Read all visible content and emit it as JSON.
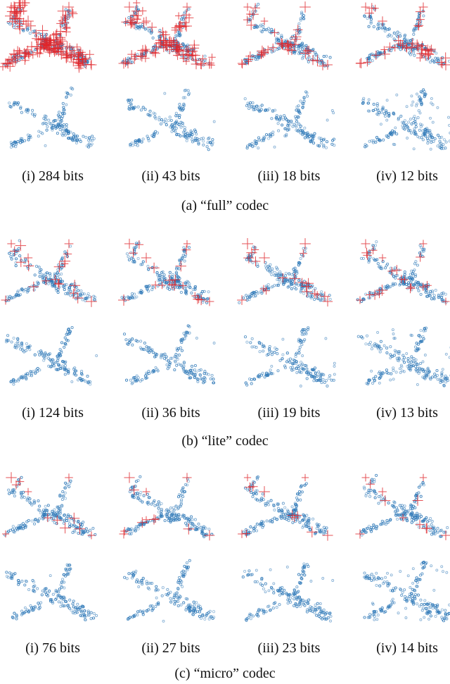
{
  "figure": {
    "sections": [
      {
        "caption": "(a) “full” codec",
        "labels": [
          "(i) 284 bits",
          "(ii) 43 bits",
          "(iii) 18 bits",
          "(iv) 12 bits"
        ],
        "keypoint_density": [
          "very-high",
          "high",
          "medium",
          "medium"
        ]
      },
      {
        "caption": "(b) “lite” codec",
        "labels": [
          "(i) 124 bits",
          "(ii) 36 bits",
          "(iii) 19 bits",
          "(iv) 13 bits"
        ],
        "keypoint_density": [
          "low",
          "low",
          "low",
          "low"
        ]
      },
      {
        "caption": "(c) “micro” codec",
        "labels": [
          "(i) 76 bits",
          "(ii) 27 bits",
          "(iii) 23 bits",
          "(iv) 14 bits"
        ],
        "keypoint_density": [
          "minimal",
          "minimal",
          "minimal",
          "minimal"
        ]
      }
    ],
    "colors": {
      "points": "#2f79b8",
      "keypoints": "#e0262b"
    },
    "icons": {
      "point": "hollow-circle-marker",
      "keypoint": "plus-marker"
    }
  }
}
